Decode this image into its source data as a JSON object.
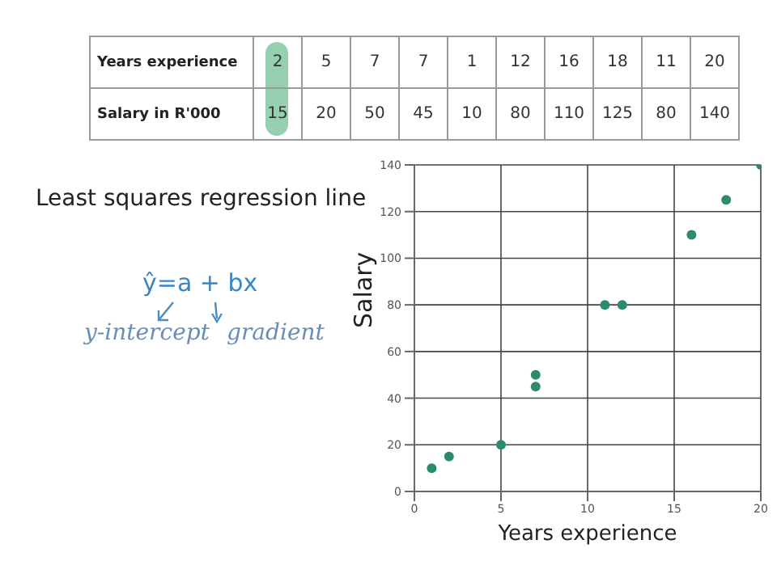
{
  "chart_data": [
    {
      "type": "other",
      "y_categories": [
        "Years experience",
        "Salary in R'000"
      ],
      "cell_labels": [
        [
          "2",
          "5",
          "7",
          "7",
          "1",
          "12",
          "16",
          "18",
          "11",
          "20"
        ],
        [
          "15",
          "20",
          "50",
          "45",
          "10",
          "80",
          "110",
          "125",
          "80",
          "140"
        ]
      ]
    },
    {
      "type": "scatter",
      "xlabel": "Years experience",
      "ylabel": "Salary",
      "x": [
        2,
        5,
        7,
        7,
        1,
        12,
        16,
        18,
        11,
        20
      ],
      "series": [
        {
          "color": "#2e8b6a",
          "values": [
            15,
            20,
            50,
            45,
            10,
            80,
            110,
            125,
            80,
            140
          ]
        }
      ],
      "xlim": [
        0,
        20
      ],
      "xticks": [
        0,
        5,
        10,
        15,
        20
      ],
      "ylim": [
        0,
        140
      ],
      "yticks": [
        0,
        20,
        40,
        60,
        80,
        100,
        120,
        140
      ],
      "grid": true,
      "marker": "circle",
      "annotations": [
        "Least squares regression line",
        "ŷ=a + bx",
        "y-intercept",
        "gradient"
      ]
    }
  ]
}
